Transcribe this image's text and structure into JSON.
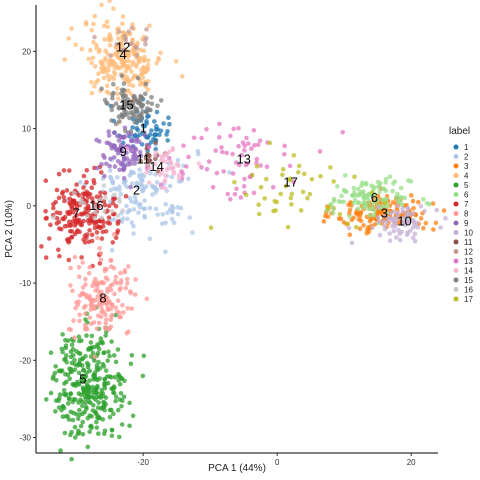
{
  "chart_data": {
    "type": "scatter",
    "title": "",
    "xlabel": "PCA 1 (44%)",
    "ylabel": "PCA 2 (10%)",
    "xlim": [
      -36,
      24
    ],
    "ylim": [
      -32,
      26
    ],
    "x_ticks": [
      -20,
      0,
      20
    ],
    "y_ticks": [
      -30,
      -20,
      -10,
      0,
      10,
      20
    ],
    "grid": false,
    "legend": {
      "title": "label",
      "placement": "right"
    },
    "series": [
      {
        "name": "1",
        "color": "#1f77b4",
        "center": [
          -20,
          10
        ],
        "spread": [
          2,
          1.5
        ],
        "n": 60
      },
      {
        "name": "2",
        "color": "#aec7e8",
        "center": [
          -20,
          2
        ],
        "spread": [
          4,
          3
        ],
        "n": 140
      },
      {
        "name": "3",
        "color": "#ff7f0e",
        "center": [
          16,
          -1
        ],
        "spread": [
          3.5,
          1.2
        ],
        "n": 150
      },
      {
        "name": "4",
        "color": "#ffbb78",
        "center": [
          -23,
          19
        ],
        "spread": [
          3,
          2.5
        ],
        "n": 220
      },
      {
        "name": "5",
        "color": "#2ca02c",
        "center": [
          -28,
          -23
        ],
        "spread": [
          2.8,
          3.5
        ],
        "n": 320
      },
      {
        "name": "6",
        "color": "#98df8a",
        "center": [
          14,
          1
        ],
        "spread": [
          3,
          1.2
        ],
        "n": 110
      },
      {
        "name": "7",
        "color": "#d62728",
        "center": [
          -29,
          -1
        ],
        "spread": [
          2.5,
          2.5
        ],
        "n": 200
      },
      {
        "name": "8",
        "color": "#ff9896",
        "center": [
          -26,
          -12
        ],
        "spread": [
          2.5,
          2.5
        ],
        "n": 160
      },
      {
        "name": "9",
        "color": "#9467bd",
        "center": [
          -23,
          7
        ],
        "spread": [
          2,
          1.5
        ],
        "n": 90
      },
      {
        "name": "10",
        "color": "#c5b0d5",
        "center": [
          19,
          -2
        ],
        "spread": [
          2,
          1
        ],
        "n": 70
      },
      {
        "name": "11",
        "color": "#8c564b",
        "center": [
          -19,
          6
        ],
        "spread": [
          1,
          0.8
        ],
        "n": 15
      },
      {
        "name": "12",
        "color": "#c49c94",
        "center": [
          -23,
          21
        ],
        "spread": [
          2,
          1.5
        ],
        "n": 20
      },
      {
        "name": "13",
        "color": "#e377c2",
        "center": [
          -6,
          6
        ],
        "spread": [
          5,
          2.5
        ],
        "n": 70
      },
      {
        "name": "14",
        "color": "#f7b6d2",
        "center": [
          -17,
          5
        ],
        "spread": [
          2,
          1.5
        ],
        "n": 40
      },
      {
        "name": "15",
        "color": "#7f7f7f",
        "center": [
          -22,
          13
        ],
        "spread": [
          2,
          1.5
        ],
        "n": 100
      },
      {
        "name": "16",
        "color": "#c7c7c7",
        "center": [
          -27,
          0
        ],
        "spread": [
          2,
          1.5
        ],
        "n": 20
      },
      {
        "name": "17",
        "color": "#bcbd22",
        "center": [
          2,
          2
        ],
        "spread": [
          6,
          3
        ],
        "n": 45
      }
    ],
    "cluster_labels": [
      {
        "text": "12",
        "x": -23,
        "y": 20.5
      },
      {
        "text": "4",
        "x": -23,
        "y": 19.5
      },
      {
        "text": "15",
        "x": -22.5,
        "y": 13
      },
      {
        "text": "1",
        "x": -20,
        "y": 10
      },
      {
        "text": "9",
        "x": -23,
        "y": 7
      },
      {
        "text": "11",
        "x": -20,
        "y": 6
      },
      {
        "text": "14",
        "x": -18,
        "y": 5
      },
      {
        "text": "2",
        "x": -21,
        "y": 2
      },
      {
        "text": "7",
        "x": -30,
        "y": -1
      },
      {
        "text": "16",
        "x": -27,
        "y": 0
      },
      {
        "text": "13",
        "x": -5,
        "y": 6
      },
      {
        "text": "17",
        "x": 2,
        "y": 3
      },
      {
        "text": "6",
        "x": 14.5,
        "y": 1
      },
      {
        "text": "3",
        "x": 16,
        "y": -1
      },
      {
        "text": "10",
        "x": 19,
        "y": -2
      },
      {
        "text": "8",
        "x": -26,
        "y": -12
      },
      {
        "text": "5",
        "x": -29,
        "y": -22.5
      }
    ]
  }
}
